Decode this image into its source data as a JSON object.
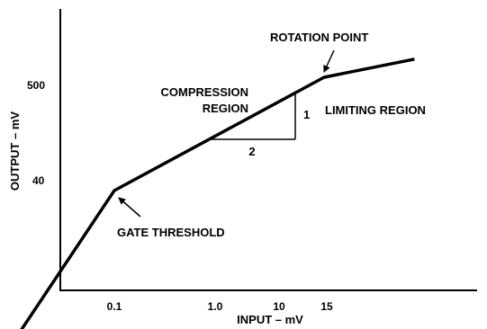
{
  "chart_data": {
    "type": "line",
    "xlabel": "INPUT – mV",
    "ylabel": "OUTPUT – mV",
    "x_scale": "log",
    "y_scale": "log",
    "x_ticks": [
      "0.1",
      "1.0",
      "10",
      "15"
    ],
    "y_ticks": [
      "40",
      "500"
    ],
    "series": [
      {
        "x": [
          0.01,
          0.1,
          15,
          130
        ],
        "y": [
          1.6,
          40,
          500,
          750
        ]
      }
    ],
    "annotations": {
      "rotation_point": "ROTATION POINT",
      "compression_line1": "COMPRESSION",
      "compression_line2": "REGION",
      "limiting_region": "LIMITING REGION",
      "gate_threshold": "GATE THRESHOLD",
      "slope_run": "2",
      "slope_rise": "1"
    }
  }
}
